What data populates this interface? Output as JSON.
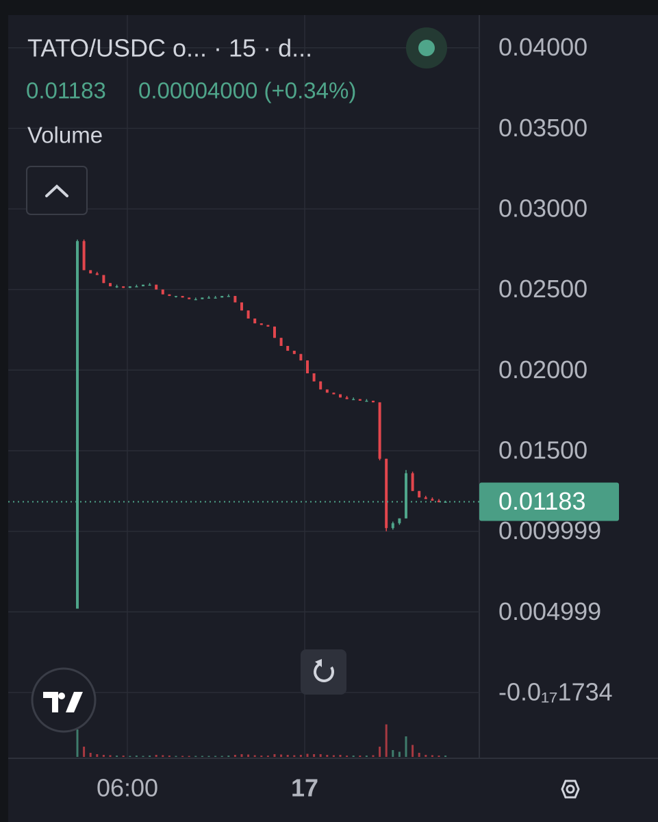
{
  "header": {
    "title": "TATO/USDC o... · 15 · d...",
    "price": "0.01183",
    "change": "0.00004000 (+0.34%)",
    "volume_label": "Volume"
  },
  "chart_data": {
    "type": "candlestick",
    "ylim": [
      -0.004,
      0.0419
    ],
    "yticks": [
      {
        "value": 0.04,
        "label": "0.04000"
      },
      {
        "value": 0.035,
        "label": "0.03500"
      },
      {
        "value": 0.03,
        "label": "0.03000"
      },
      {
        "value": 0.025,
        "label": "0.02500"
      },
      {
        "value": 0.02,
        "label": "0.02000"
      },
      {
        "value": 0.015,
        "label": "0.01500"
      },
      0.009999,
      0.004999,
      {
        "value": -1.734e-18,
        "label": "-0.0₁₇1734"
      }
    ],
    "grid": true,
    "up_color": "#4fa58a",
    "down_color": "#e2464d",
    "time_labels": [
      "06:00",
      "17"
    ],
    "last_price": 0.01183,
    "ohlc": [
      [
        0.0052,
        0.0281,
        0.0052,
        0.028
      ],
      [
        0.028,
        0.0281,
        0.0262,
        0.0262
      ],
      [
        0.0262,
        0.0262,
        0.026,
        0.026
      ],
      [
        0.026,
        0.0261,
        0.0259,
        0.0259
      ],
      [
        0.0259,
        0.0259,
        0.0254,
        0.0254
      ],
      [
        0.0254,
        0.0254,
        0.0252,
        0.0252
      ],
      [
        0.0252,
        0.0253,
        0.0251,
        0.0252
      ],
      [
        0.0252,
        0.0252,
        0.0251,
        0.0251
      ],
      [
        0.0251,
        0.0252,
        0.0251,
        0.0252
      ],
      [
        0.0252,
        0.0253,
        0.0252,
        0.0252
      ],
      [
        0.0252,
        0.0253,
        0.0252,
        0.0253
      ],
      [
        0.0253,
        0.0254,
        0.0253,
        0.0253
      ],
      [
        0.0253,
        0.0253,
        0.025,
        0.025
      ],
      [
        0.025,
        0.025,
        0.0247,
        0.0247
      ],
      [
        0.0247,
        0.0247,
        0.0246,
        0.0246
      ],
      [
        0.0246,
        0.0246,
        0.0245,
        0.0246
      ],
      [
        0.0246,
        0.0246,
        0.0245,
        0.0245
      ],
      [
        0.0245,
        0.0245,
        0.0244,
        0.0244
      ],
      [
        0.0244,
        0.0245,
        0.0244,
        0.0244
      ],
      [
        0.0244,
        0.0245,
        0.0244,
        0.0245
      ],
      [
        0.0245,
        0.0246,
        0.0245,
        0.0245
      ],
      [
        0.0245,
        0.0246,
        0.0245,
        0.0245
      ],
      [
        0.0245,
        0.0246,
        0.0245,
        0.0246
      ],
      [
        0.0246,
        0.0247,
        0.0246,
        0.0246
      ],
      [
        0.0246,
        0.0246,
        0.0242,
        0.0242
      ],
      [
        0.0242,
        0.0242,
        0.0237,
        0.0237
      ],
      [
        0.0237,
        0.0237,
        0.0232,
        0.0232
      ],
      [
        0.0232,
        0.0232,
        0.0229,
        0.0229
      ],
      [
        0.0229,
        0.0229,
        0.0228,
        0.0228
      ],
      [
        0.0228,
        0.0228,
        0.0227,
        0.0227
      ],
      [
        0.0227,
        0.0227,
        0.022,
        0.022
      ],
      [
        0.022,
        0.022,
        0.0215,
        0.0215
      ],
      [
        0.0215,
        0.0215,
        0.0212,
        0.0212
      ],
      [
        0.0212,
        0.0212,
        0.021,
        0.021
      ],
      [
        0.021,
        0.021,
        0.0206,
        0.0206
      ],
      [
        0.0206,
        0.0206,
        0.0198,
        0.0198
      ],
      [
        0.0198,
        0.0198,
        0.0193,
        0.0193
      ],
      [
        0.0193,
        0.0193,
        0.0188,
        0.0188
      ],
      [
        0.0188,
        0.0188,
        0.0186,
        0.0186
      ],
      [
        0.0186,
        0.0186,
        0.0185,
        0.0185
      ],
      [
        0.0185,
        0.0185,
        0.0183,
        0.0183
      ],
      [
        0.0183,
        0.0184,
        0.0182,
        0.0182
      ],
      [
        0.0182,
        0.0183,
        0.0182,
        0.0182
      ],
      [
        0.0182,
        0.0182,
        0.0181,
        0.0181
      ],
      [
        0.0181,
        0.0182,
        0.0181,
        0.0181
      ],
      [
        0.0181,
        0.0181,
        0.018,
        0.018
      ],
      [
        0.018,
        0.018,
        0.0144,
        0.0145
      ],
      [
        0.0145,
        0.0145,
        0.01,
        0.0102
      ],
      [
        0.0102,
        0.0106,
        0.0101,
        0.0105
      ],
      [
        0.0105,
        0.0108,
        0.0104,
        0.0108
      ],
      [
        0.0108,
        0.0138,
        0.0108,
        0.0136
      ],
      [
        0.0136,
        0.0137,
        0.0125,
        0.0125
      ],
      [
        0.0125,
        0.0125,
        0.0121,
        0.0121
      ],
      [
        0.0121,
        0.0122,
        0.012,
        0.012
      ],
      [
        0.012,
        0.0121,
        0.0119,
        0.0119
      ],
      [
        0.0119,
        0.012,
        0.0118,
        0.0118
      ],
      [
        0.0118,
        0.0119,
        0.0118,
        0.01183
      ]
    ],
    "volume": [
      80,
      30,
      12,
      8,
      6,
      5,
      4,
      4,
      3,
      4,
      3,
      4,
      6,
      5,
      4,
      3,
      3,
      3,
      3,
      3,
      3,
      3,
      3,
      4,
      6,
      8,
      7,
      5,
      4,
      4,
      8,
      7,
      6,
      5,
      6,
      9,
      8,
      8,
      6,
      5,
      6,
      4,
      4,
      4,
      4,
      5,
      30,
      95,
      20,
      15,
      60,
      35,
      12,
      6,
      5,
      4,
      4
    ]
  }
}
